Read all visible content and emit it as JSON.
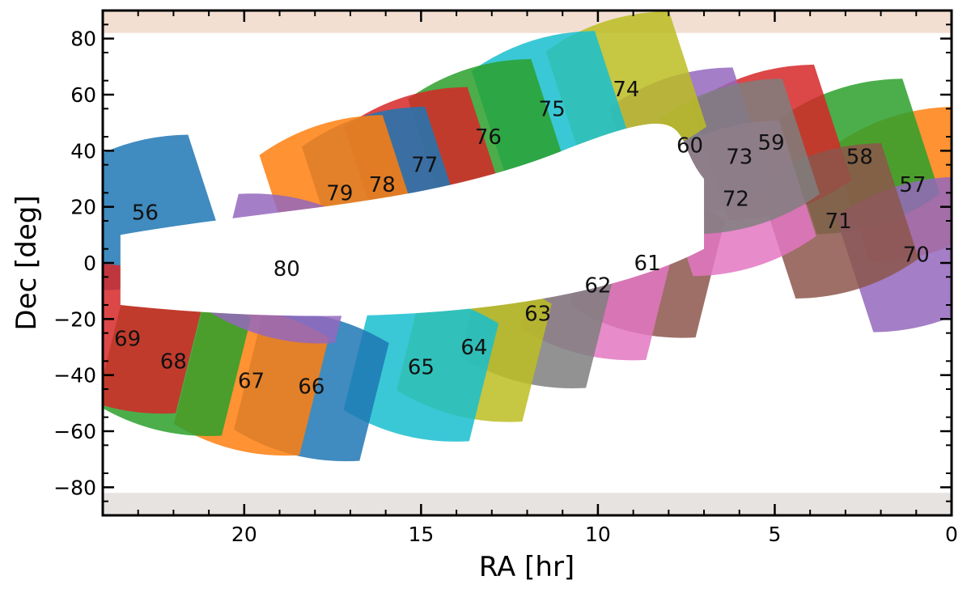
{
  "chart_data": {
    "type": "scatter",
    "title": "",
    "xlabel": "RA [hr]",
    "ylabel": "Dec [deg]",
    "xlim": [
      24,
      0
    ],
    "ylim": [
      -90,
      90
    ],
    "x_ticks": [
      20,
      15,
      10,
      5,
      0
    ],
    "x_tick_labels": [
      "20",
      "15",
      "10",
      "5",
      "0"
    ],
    "y_ticks": [
      80,
      60,
      40,
      20,
      0,
      -20,
      -40,
      -60,
      -80
    ],
    "y_tick_labels": [
      "80",
      "60",
      "40",
      "20",
      "0",
      "−20",
      "−40",
      "−60",
      "−80"
    ],
    "grid": false,
    "legend": "none",
    "colors": [
      "#1f77b4",
      "#ff7f0e",
      "#2ca02c",
      "#d62728",
      "#9467bd",
      "#8c564b",
      "#e377c2",
      "#7f7f7f",
      "#bcbd22",
      "#17becf"
    ],
    "sectors": [
      {
        "label": "56",
        "ra": 22.8,
        "dec": 18,
        "color": "#1f77b4"
      },
      {
        "label": "57",
        "ra": 1.1,
        "dec": 28,
        "color": "#ff7f0e"
      },
      {
        "label": "58",
        "ra": 2.6,
        "dec": 38,
        "color": "#2ca02c"
      },
      {
        "label": "59",
        "ra": 5.1,
        "dec": 43,
        "color": "#d62728"
      },
      {
        "label": "60",
        "ra": 7.4,
        "dec": 42,
        "color": "#9467bd"
      },
      {
        "label": "61",
        "ra": 8.6,
        "dec": 0,
        "color": "#8c564b"
      },
      {
        "label": "62",
        "ra": 10.0,
        "dec": -8,
        "color": "#e377c2"
      },
      {
        "label": "63",
        "ra": 11.7,
        "dec": -18,
        "color": "#7f7f7f"
      },
      {
        "label": "64",
        "ra": 13.5,
        "dec": -30,
        "color": "#bcbd22"
      },
      {
        "label": "65",
        "ra": 15.0,
        "dec": -37,
        "color": "#17becf"
      },
      {
        "label": "66",
        "ra": 18.1,
        "dec": -44,
        "color": "#1f77b4"
      },
      {
        "label": "67",
        "ra": 19.8,
        "dec": -42,
        "color": "#ff7f0e"
      },
      {
        "label": "68",
        "ra": 22.0,
        "dec": -35,
        "color": "#2ca02c"
      },
      {
        "label": "69",
        "ra": 23.3,
        "dec": -27,
        "color": "#d62728"
      },
      {
        "label": "70",
        "ra": 1.0,
        "dec": 3,
        "color": "#9467bd"
      },
      {
        "label": "71",
        "ra": 3.2,
        "dec": 15,
        "color": "#8c564b"
      },
      {
        "label": "72",
        "ra": 6.1,
        "dec": 23,
        "color": "#e377c2"
      },
      {
        "label": "73",
        "ra": 6.0,
        "dec": 38,
        "color": "#7f7f7f"
      },
      {
        "label": "74",
        "ra": 9.2,
        "dec": 62,
        "color": "#bcbd22"
      },
      {
        "label": "75",
        "ra": 11.3,
        "dec": 55,
        "color": "#17becf"
      },
      {
        "label": "76",
        "ra": 13.1,
        "dec": 45,
        "color": "#2ca02c"
      },
      {
        "label": "77",
        "ra": 14.9,
        "dec": 35,
        "color": "#d62728"
      },
      {
        "label": "78",
        "ra": 16.1,
        "dec": 28,
        "color": "#1f77b4"
      },
      {
        "label": "79",
        "ra": 17.3,
        "dec": 25,
        "color": "#ff7f0e"
      },
      {
        "label": "80",
        "ra": 18.8,
        "dec": -2,
        "color": "#9467bd"
      }
    ]
  }
}
